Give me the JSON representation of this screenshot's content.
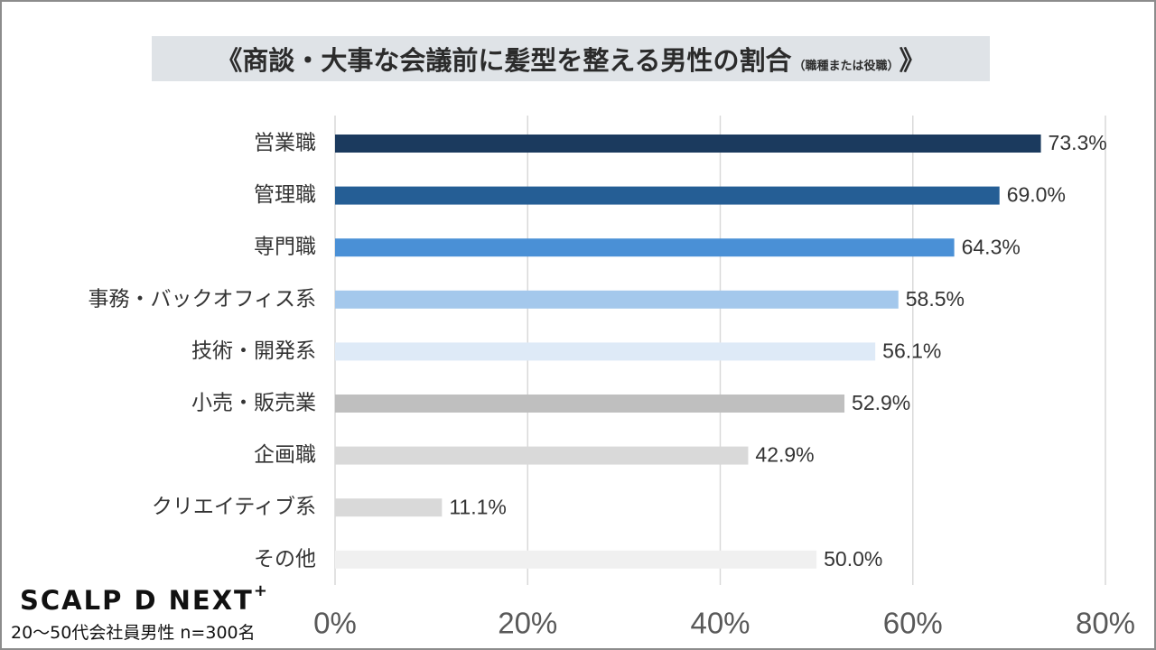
{
  "title": {
    "main": "《商談・大事な会議前に髪型を整える男性の割合",
    "sub": "（職種または役職）",
    "close": "》"
  },
  "logo": {
    "text": "SCALP D NEXT",
    "mark": "+"
  },
  "sample_note": "20～50代会社員男性 n=300名",
  "colors": {
    "title_bg": "#dfe3e7",
    "bars": [
      "#1b3a5e",
      "#255e95",
      "#4a90d6",
      "#a4c8ec",
      "#deeaf7",
      "#bfbfbf",
      "#d9d9d9",
      "#d9d9d9",
      "#f0f0f0"
    ],
    "grid": "#d9d9d9"
  },
  "chart_data": {
    "type": "bar",
    "orientation": "horizontal",
    "categories": [
      "営業職",
      "管理職",
      "専門職",
      "事務・バックオフィス系",
      "技術・開発系",
      "小売・販売業",
      "企画職",
      "クリエイティブ系",
      "その他"
    ],
    "values": [
      73.3,
      69.0,
      64.3,
      58.5,
      56.1,
      52.9,
      42.9,
      11.1,
      50.0
    ],
    "value_labels": [
      "73.3%",
      "69.0%",
      "64.3%",
      "58.5%",
      "56.1%",
      "52.9%",
      "42.9%",
      "11.1%",
      "50.0%"
    ],
    "xlim": [
      0,
      80
    ],
    "xticks": [
      0,
      20,
      40,
      60,
      80
    ],
    "xtick_labels": [
      "0%",
      "20%",
      "40%",
      "60%",
      "80%"
    ],
    "grid": true,
    "legend": false
  }
}
